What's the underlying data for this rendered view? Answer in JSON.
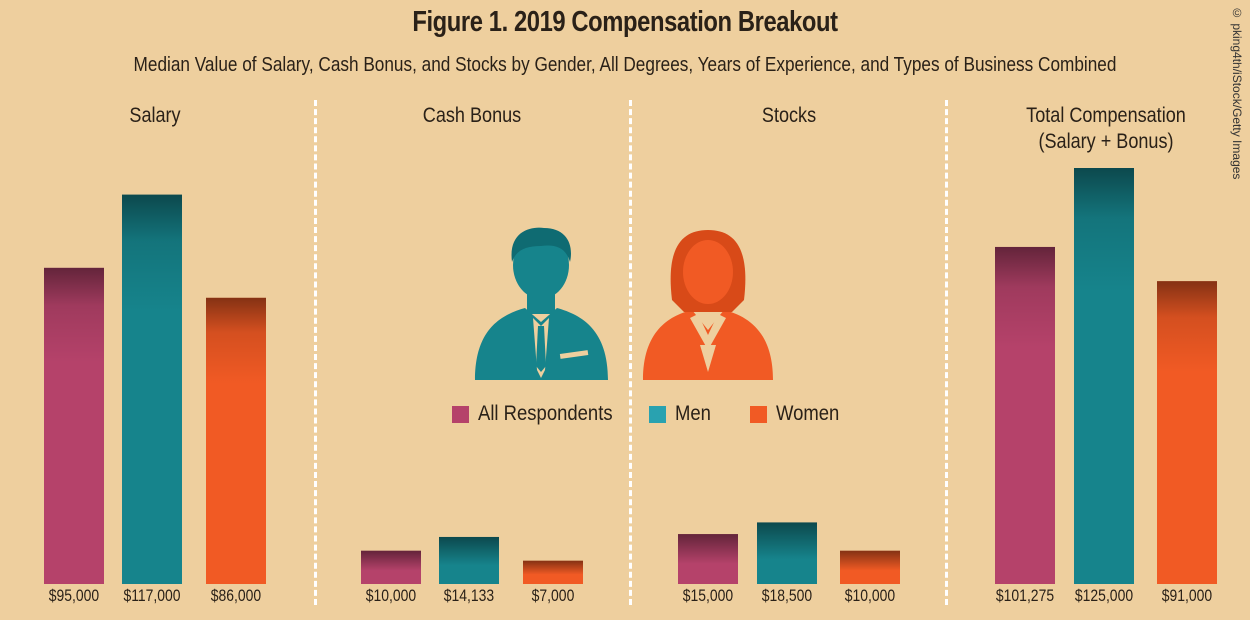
{
  "chart_data": {
    "type": "bar",
    "title": "Figure 1. 2019 Compensation Breakout",
    "subtitle": "Median Value of Salary, Cash Bonus, and Stocks by Gender, All Degrees, Years of Experience, and Types of Business Combined",
    "credit": "© pking4th/iStock/Getty Images",
    "ylim": [
      0,
      125000
    ],
    "grid": false,
    "legend_placement": "center",
    "series_names": [
      "All Respondents",
      "Men",
      "Women"
    ],
    "colors": {
      "All Respondents": "#b5426a",
      "Men": "#16848c",
      "Women": "#f15a24"
    },
    "panels": [
      {
        "title": "Salary",
        "values": [
          95000,
          117000,
          86000
        ],
        "labels": [
          "$95,000",
          "$117,000",
          "$86,000"
        ]
      },
      {
        "title": "Cash Bonus",
        "values": [
          10000,
          14133,
          7000
        ],
        "labels": [
          "$10,000",
          "$14,133",
          "$7,000"
        ]
      },
      {
        "title": "Stocks",
        "values": [
          15000,
          18500,
          10000
        ],
        "labels": [
          "$15,000",
          "$18,500",
          "$10,000"
        ]
      },
      {
        "title": "Total Compensation\n(Salary + Bonus)",
        "title_line1": "Total Compensation",
        "title_line2": "(Salary + Bonus)",
        "values": [
          101275,
          125000,
          91000
        ],
        "labels": [
          "$101,275",
          "$125,000",
          "$91,000"
        ]
      }
    ],
    "icons": [
      "man-icon",
      "woman-icon"
    ]
  }
}
